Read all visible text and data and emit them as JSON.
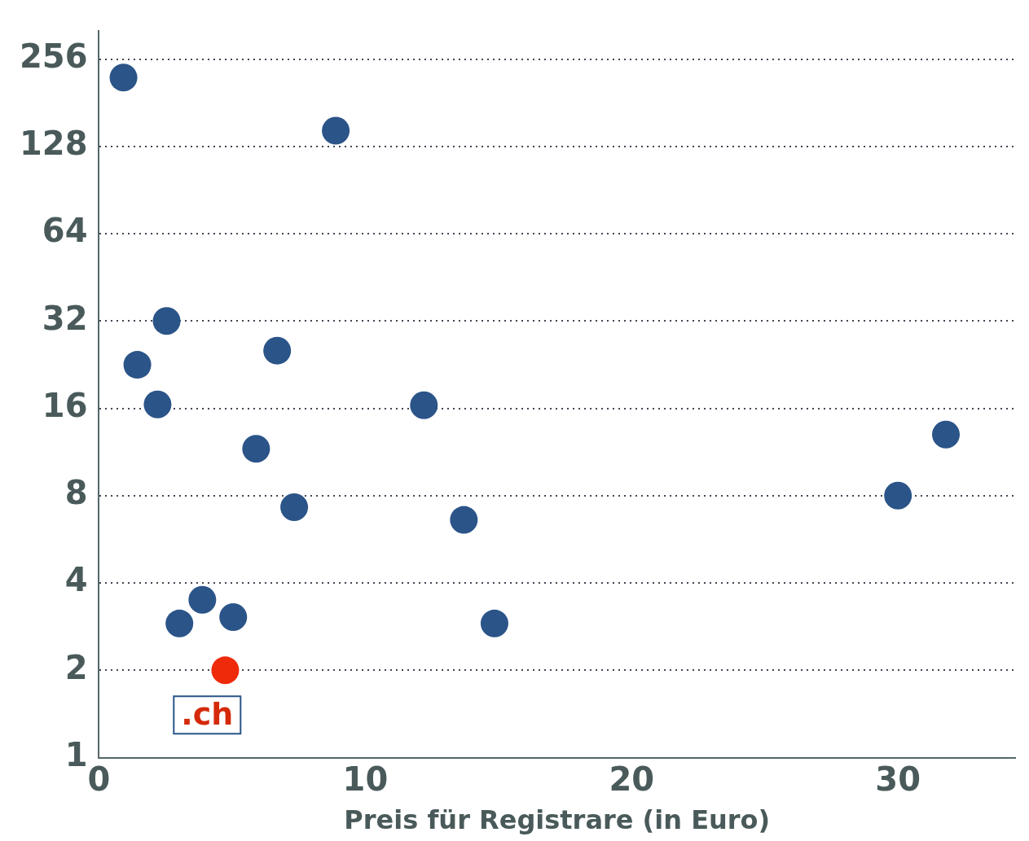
{
  "chart_data": {
    "type": "scatter",
    "xlabel": "Preis für Registrare (in Euro)",
    "log": "y",
    "grid": "y",
    "legend": false,
    "marker": "circle",
    "xlim": [
      0,
      34.4
    ],
    "xticks": [
      0,
      10,
      20,
      30
    ],
    "ylim": [
      1,
      320
    ],
    "yticks": [
      1,
      2,
      4,
      8,
      16,
      32,
      64,
      128,
      256
    ],
    "series": [
      {
        "color": "#2b5488",
        "x": [
          0.92,
          8.89,
          2.54,
          1.44,
          2.2,
          6.69,
          12.2,
          5.9,
          7.33,
          13.7,
          31.8,
          30.0,
          3.88,
          3.02,
          5.04,
          14.85
        ],
        "values": [
          221,
          145,
          32,
          22.6,
          16.5,
          25.3,
          16.4,
          11.6,
          7.3,
          6.6,
          13,
          8,
          3.5,
          2.9,
          3.05,
          2.9
        ]
      },
      {
        "color": "#ee2a0a",
        "x": [
          4.74
        ],
        "values": [
          2
        ]
      }
    ],
    "annotations": [
      {
        "text": ".ch",
        "x": 4.74,
        "y": 2
      }
    ]
  }
}
